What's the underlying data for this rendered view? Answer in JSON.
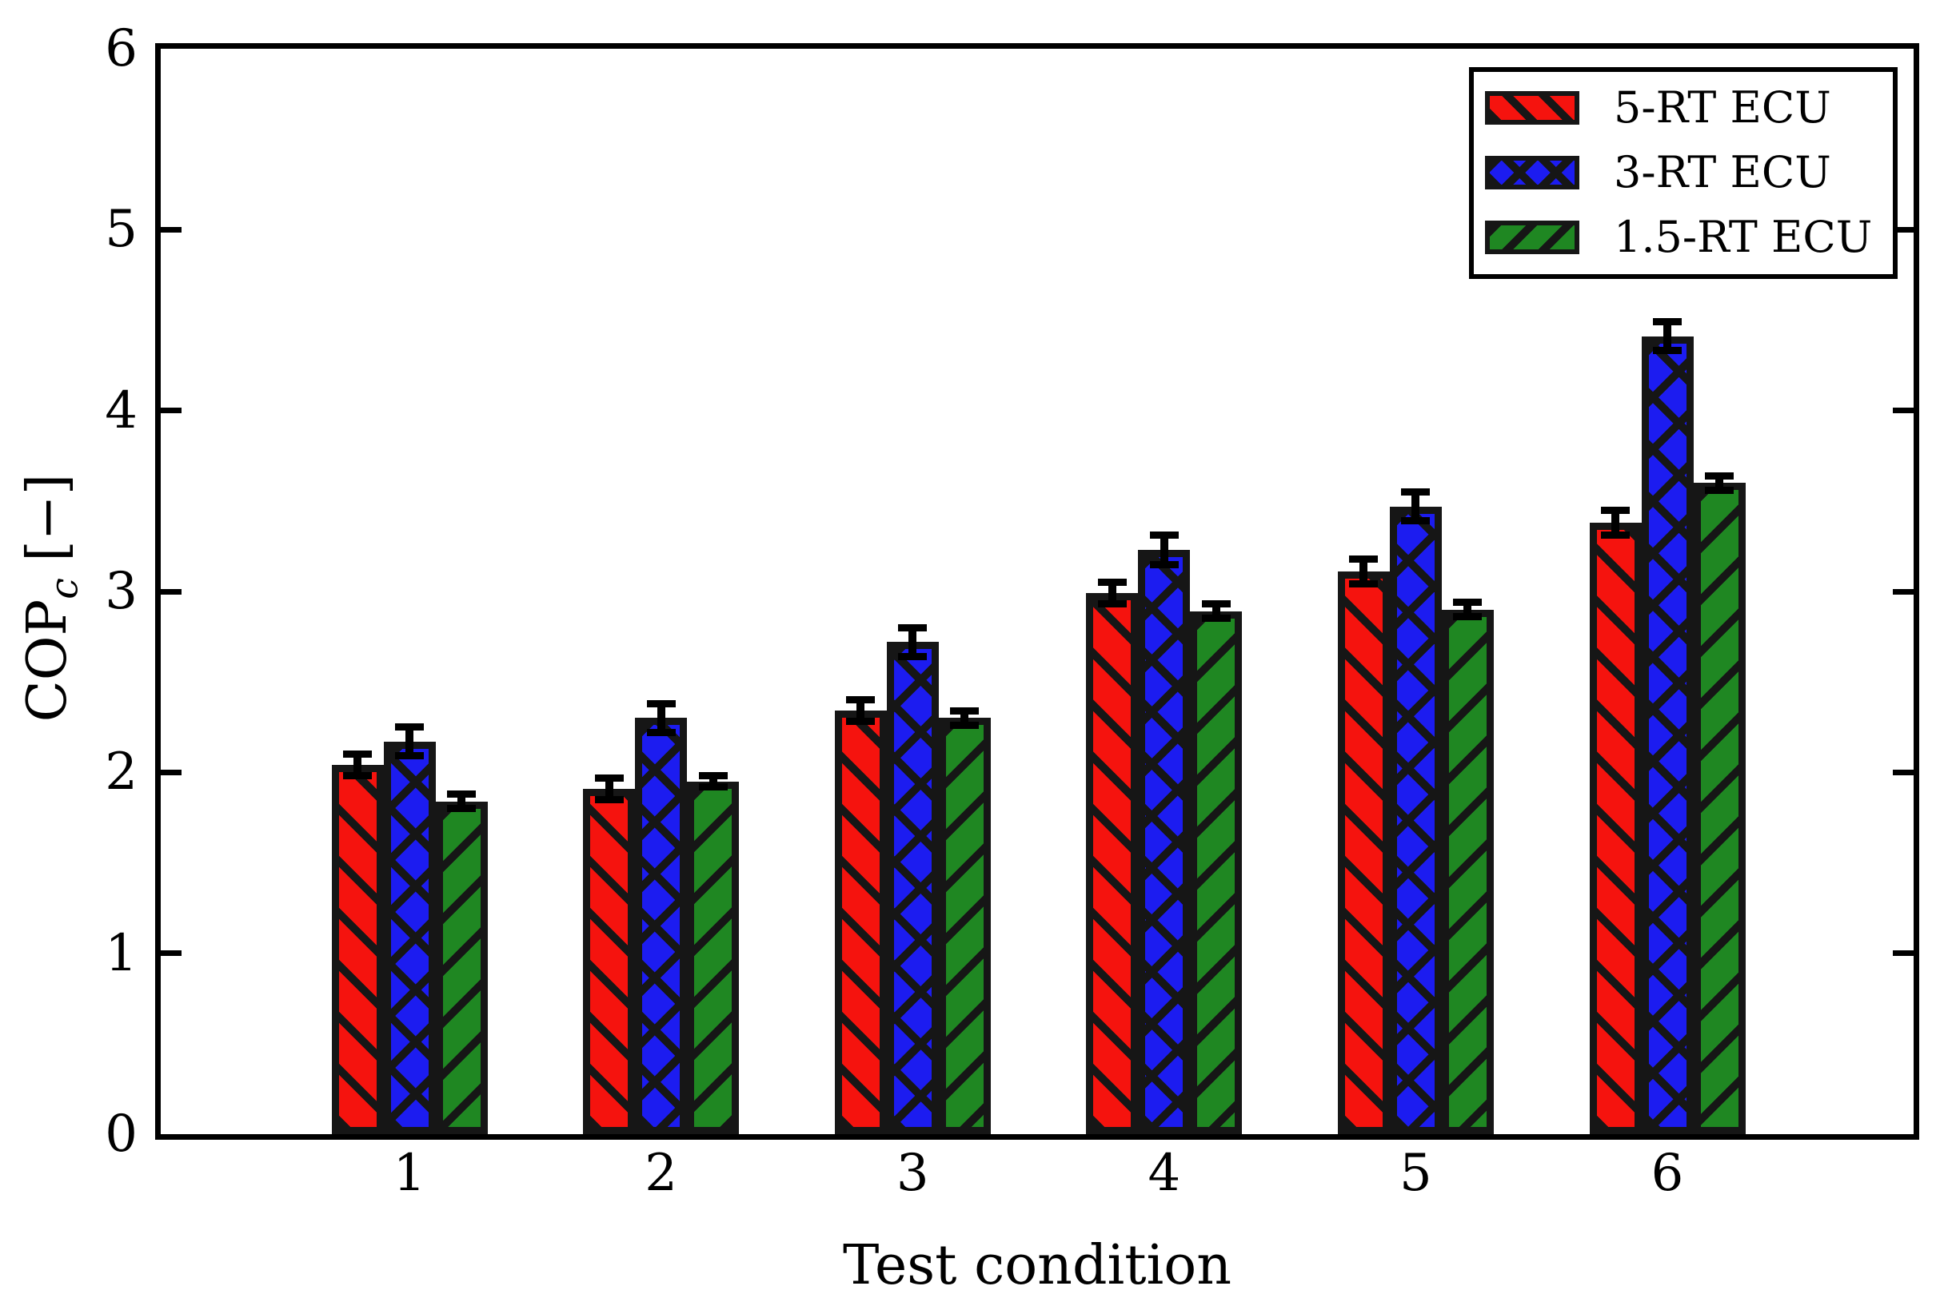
{
  "figure": {
    "background": "#ffffff"
  },
  "chart_data": {
    "type": "bar",
    "title": "",
    "xlabel": "Test condition",
    "ylabel": "COP_c [−]",
    "ylabel_parts": {
      "prefix": "COP",
      "subscript": "c",
      "suffix": "[−]"
    },
    "categories": [
      "1",
      "2",
      "3",
      "4",
      "5",
      "6"
    ],
    "ylim": [
      0,
      6
    ],
    "yticks": [
      "0",
      "1",
      "2",
      "3",
      "4",
      "5",
      "6"
    ],
    "grid": false,
    "legend_position": "upper-right",
    "axis_color": "#000000",
    "hatch_color": "#161616",
    "series": [
      {
        "name": "5-RT ECU",
        "color": "#f5130e",
        "hatch": "backslash",
        "values": [
          2.04,
          1.91,
          2.34,
          2.99,
          3.11,
          3.38
        ],
        "errors": [
          0.06,
          0.06,
          0.06,
          0.06,
          0.07,
          0.07
        ]
      },
      {
        "name": "3-RT ECU",
        "color": "#1c1cf0",
        "hatch": "cross",
        "values": [
          2.17,
          2.3,
          2.72,
          3.23,
          3.47,
          4.41
        ],
        "errors": [
          0.08,
          0.08,
          0.08,
          0.08,
          0.08,
          0.08
        ]
      },
      {
        "name": "1.5-RT ECU",
        "color": "#1f8722",
        "hatch": "slash",
        "values": [
          1.84,
          1.95,
          2.3,
          2.89,
          2.9,
          3.6
        ],
        "errors": [
          0.04,
          0.03,
          0.04,
          0.04,
          0.04,
          0.04
        ]
      }
    ]
  }
}
